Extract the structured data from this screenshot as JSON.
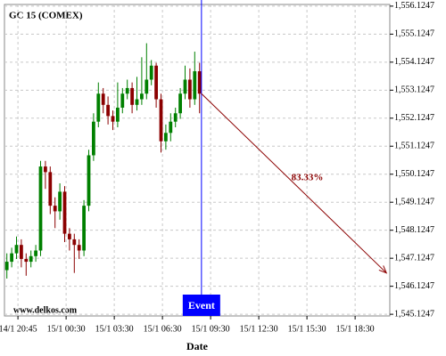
{
  "chart_data": {
    "type": "candlestick",
    "title": "GC 15 (COMEX)",
    "x_label": "Date",
    "watermark": "www.delkos.com",
    "up_color": "#008000",
    "down_color": "#8b0000",
    "grid": true,
    "open": [
      1546.7,
      1547.0,
      1547.3,
      1547.6,
      1547.1,
      1547.0,
      1547.2,
      1547.4,
      1550.4,
      1550.2,
      1549.0,
      1548.8,
      1549.5,
      1548.0,
      1547.8,
      1547.6,
      1547.4,
      1549.0,
      1550.8,
      1552.0,
      1553.0,
      1552.6,
      1552.2,
      1552.0,
      1552.5,
      1553.0,
      1553.2,
      1552.6,
      1552.8,
      1553.0,
      1553.5,
      1554.0,
      1552.8,
      1551.3,
      1551.6,
      1552.0,
      1552.3,
      1553.0,
      1553.5,
      1552.8,
      1553.8
    ],
    "high": [
      1547.3,
      1547.5,
      1547.9,
      1547.8,
      1547.3,
      1547.4,
      1547.6,
      1550.6,
      1550.6,
      1550.4,
      1549.3,
      1549.8,
      1549.7,
      1548.2,
      1548.0,
      1547.8,
      1549.2,
      1551.0,
      1552.3,
      1553.4,
      1553.2,
      1552.9,
      1552.4,
      1553.4,
      1553.2,
      1553.5,
      1553.4,
      1553.6,
      1554.3,
      1554.8,
      1554.2,
      1554.1,
      1553.0,
      1551.9,
      1552.3,
      1552.5,
      1553.2,
      1554.0,
      1553.9,
      1554.5,
      1554.1
    ],
    "low": [
      1546.4,
      1546.8,
      1547.1,
      1546.8,
      1546.5,
      1546.8,
      1547.0,
      1547.2,
      1549.6,
      1548.7,
      1548.2,
      1548.5,
      1547.7,
      1547.4,
      1546.6,
      1547.1,
      1547.2,
      1548.8,
      1550.6,
      1551.8,
      1552.3,
      1551.9,
      1551.7,
      1551.8,
      1552.3,
      1552.8,
      1552.3,
      1552.4,
      1552.6,
      1552.8,
      1553.3,
      1552.5,
      1550.9,
      1551.0,
      1551.3,
      1551.8,
      1552.1,
      1552.8,
      1552.5,
      1552.6,
      1552.3
    ],
    "close": [
      1547.0,
      1547.3,
      1547.6,
      1547.1,
      1547.0,
      1547.2,
      1547.4,
      1550.4,
      1550.2,
      1549.0,
      1548.8,
      1549.5,
      1548.0,
      1547.8,
      1547.6,
      1547.4,
      1549.0,
      1550.8,
      1552.0,
      1553.0,
      1552.6,
      1552.2,
      1552.0,
      1552.5,
      1553.0,
      1553.2,
      1552.6,
      1552.8,
      1553.0,
      1553.5,
      1554.0,
      1552.8,
      1551.3,
      1551.6,
      1552.0,
      1552.3,
      1553.0,
      1553.5,
      1552.8,
      1553.8,
      1553.0
    ],
    "xlim": [
      -0.5,
      79.5
    ],
    "xticks": [
      {
        "value": 2.3,
        "label": "14/1 20:45"
      },
      {
        "value": 12.3,
        "label": "15/1 00:30"
      },
      {
        "value": 22.3,
        "label": "15/1 03:30"
      },
      {
        "value": 32.3,
        "label": "15/1 06:30"
      },
      {
        "value": 42.3,
        "label": "15/1 09:30"
      },
      {
        "value": 52.3,
        "label": "15/1 12:30"
      },
      {
        "value": 62.3,
        "label": "15/1 15:30"
      },
      {
        "value": 72.3,
        "label": "15/1 18:30"
      }
    ],
    "ylim": [
      1545.0647,
      1556.1847
    ],
    "yticks": [
      {
        "value": 1545.1247,
        "label": "1,545.1247"
      },
      {
        "value": 1546.1247,
        "label": "1,546.1247"
      },
      {
        "value": 1547.1247,
        "label": "1,547.1247"
      },
      {
        "value": 1548.1247,
        "label": "1,548.1247"
      },
      {
        "value": 1549.1247,
        "label": "1,549.1247"
      },
      {
        "value": 1550.1247,
        "label": "1,550.1247"
      },
      {
        "value": 1551.1247,
        "label": "1,551.1247"
      },
      {
        "value": 1552.1247,
        "label": "1,552.1247"
      },
      {
        "value": 1553.1247,
        "label": "1,553.1247"
      },
      {
        "value": 1554.1247,
        "label": "1,554.1247"
      },
      {
        "value": 1555.1247,
        "label": "1,555.1247"
      },
      {
        "value": 1556.1247,
        "label": "1,556.1247"
      }
    ],
    "event": {
      "label": "Event",
      "x": 40.4,
      "color": "#0000ff"
    },
    "projection": {
      "label": "83.33%",
      "x": [
        40.4,
        78.8
      ],
      "y": [
        1553.0,
        1546.6
      ],
      "color": "#8b0000"
    }
  }
}
